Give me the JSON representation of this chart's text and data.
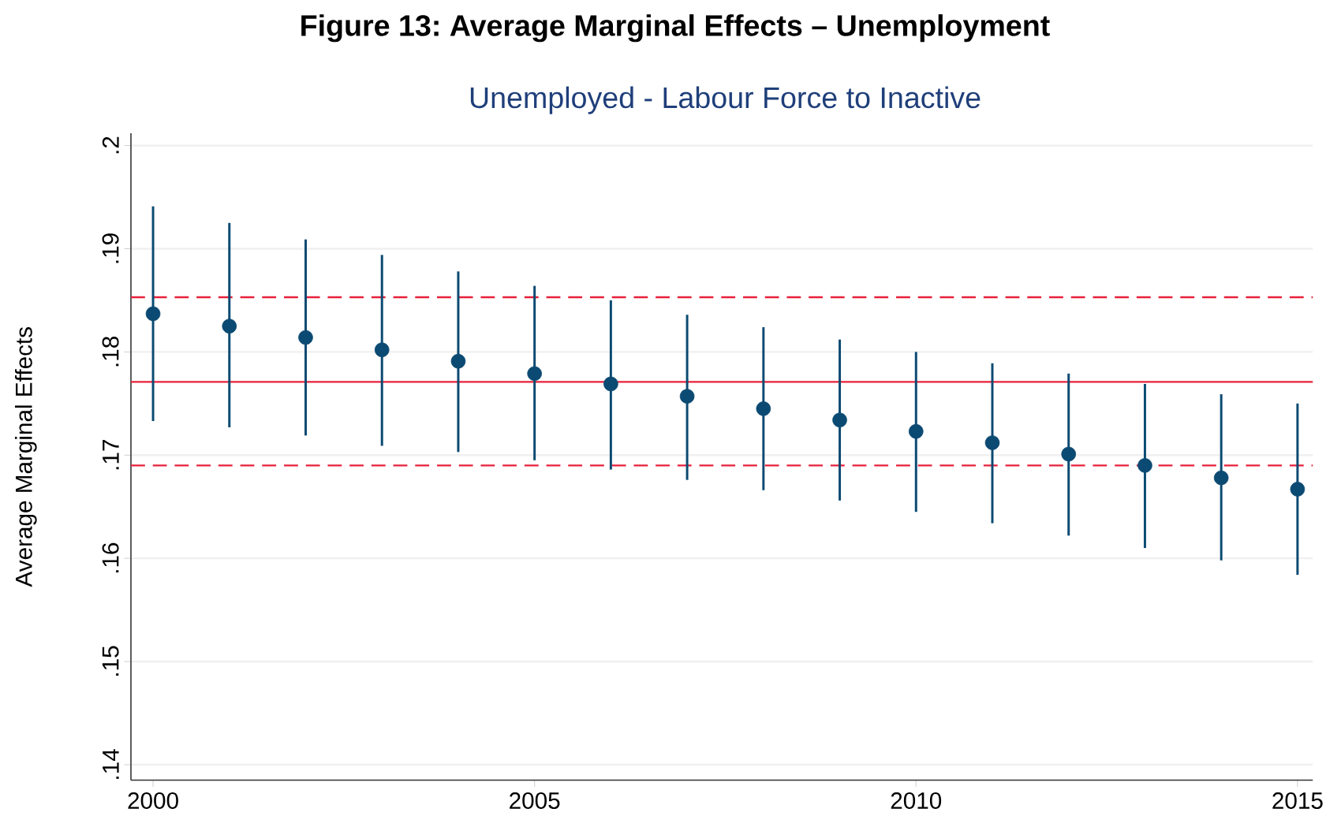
{
  "chart_data": {
    "type": "scatter",
    "title": "Figure 13: Average Marginal Effects – Unemployment",
    "subtitle": "Unemployed - Labour Force to Inactive",
    "ylabel": "Average Marginal Effects",
    "x": [
      2000,
      2001,
      2002,
      2003,
      2004,
      2005,
      2006,
      2007,
      2008,
      2009,
      2010,
      2011,
      2012,
      2013,
      2014,
      2015
    ],
    "values": [
      0.1837,
      0.1825,
      0.1814,
      0.1802,
      0.1791,
      0.1779,
      0.1769,
      0.1757,
      0.1745,
      0.1734,
      0.1723,
      0.1712,
      0.1701,
      0.169,
      0.1678,
      0.1667
    ],
    "errors": [
      [
        0.1733,
        0.1941
      ],
      [
        0.1727,
        0.1925
      ],
      [
        0.1719,
        0.1909
      ],
      [
        0.1709,
        0.1894
      ],
      [
        0.1703,
        0.1878
      ],
      [
        0.1695,
        0.1864
      ],
      [
        0.1686,
        0.185
      ],
      [
        0.1676,
        0.1836
      ],
      [
        0.1666,
        0.1824
      ],
      [
        0.1656,
        0.1812
      ],
      [
        0.1645,
        0.18
      ],
      [
        0.1634,
        0.1789
      ],
      [
        0.1622,
        0.1779
      ],
      [
        0.161,
        0.1769
      ],
      [
        0.1598,
        0.1759
      ],
      [
        0.1584,
        0.175
      ]
    ],
    "color": "#0b4a72",
    "marker": "circle",
    "ref_lines": [
      {
        "axis": "y",
        "value": 0.1771,
        "color": "#e8203a",
        "line_style": "solid"
      },
      {
        "axis": "y",
        "value": 0.1853,
        "color": "#e8203a",
        "line_style": "dashed"
      },
      {
        "axis": "y",
        "value": 0.169,
        "color": "#e8203a",
        "line_style": "dashed"
      }
    ],
    "xlim": [
      1999.71,
      2015.2
    ],
    "ylim": [
      0.1385,
      0.2012
    ],
    "xticks": [
      2000,
      2005,
      2010,
      2015
    ],
    "yticks": [
      {
        "value": 0.14,
        "label": ".14"
      },
      {
        "value": 0.15,
        "label": ".15"
      },
      {
        "value": 0.16,
        "label": ".16"
      },
      {
        "value": 0.17,
        "label": ".17"
      },
      {
        "value": 0.18,
        "label": ".18"
      },
      {
        "value": 0.19,
        "label": ".19"
      },
      {
        "value": 0.2,
        "label": ".2"
      }
    ],
    "grid": "y"
  }
}
